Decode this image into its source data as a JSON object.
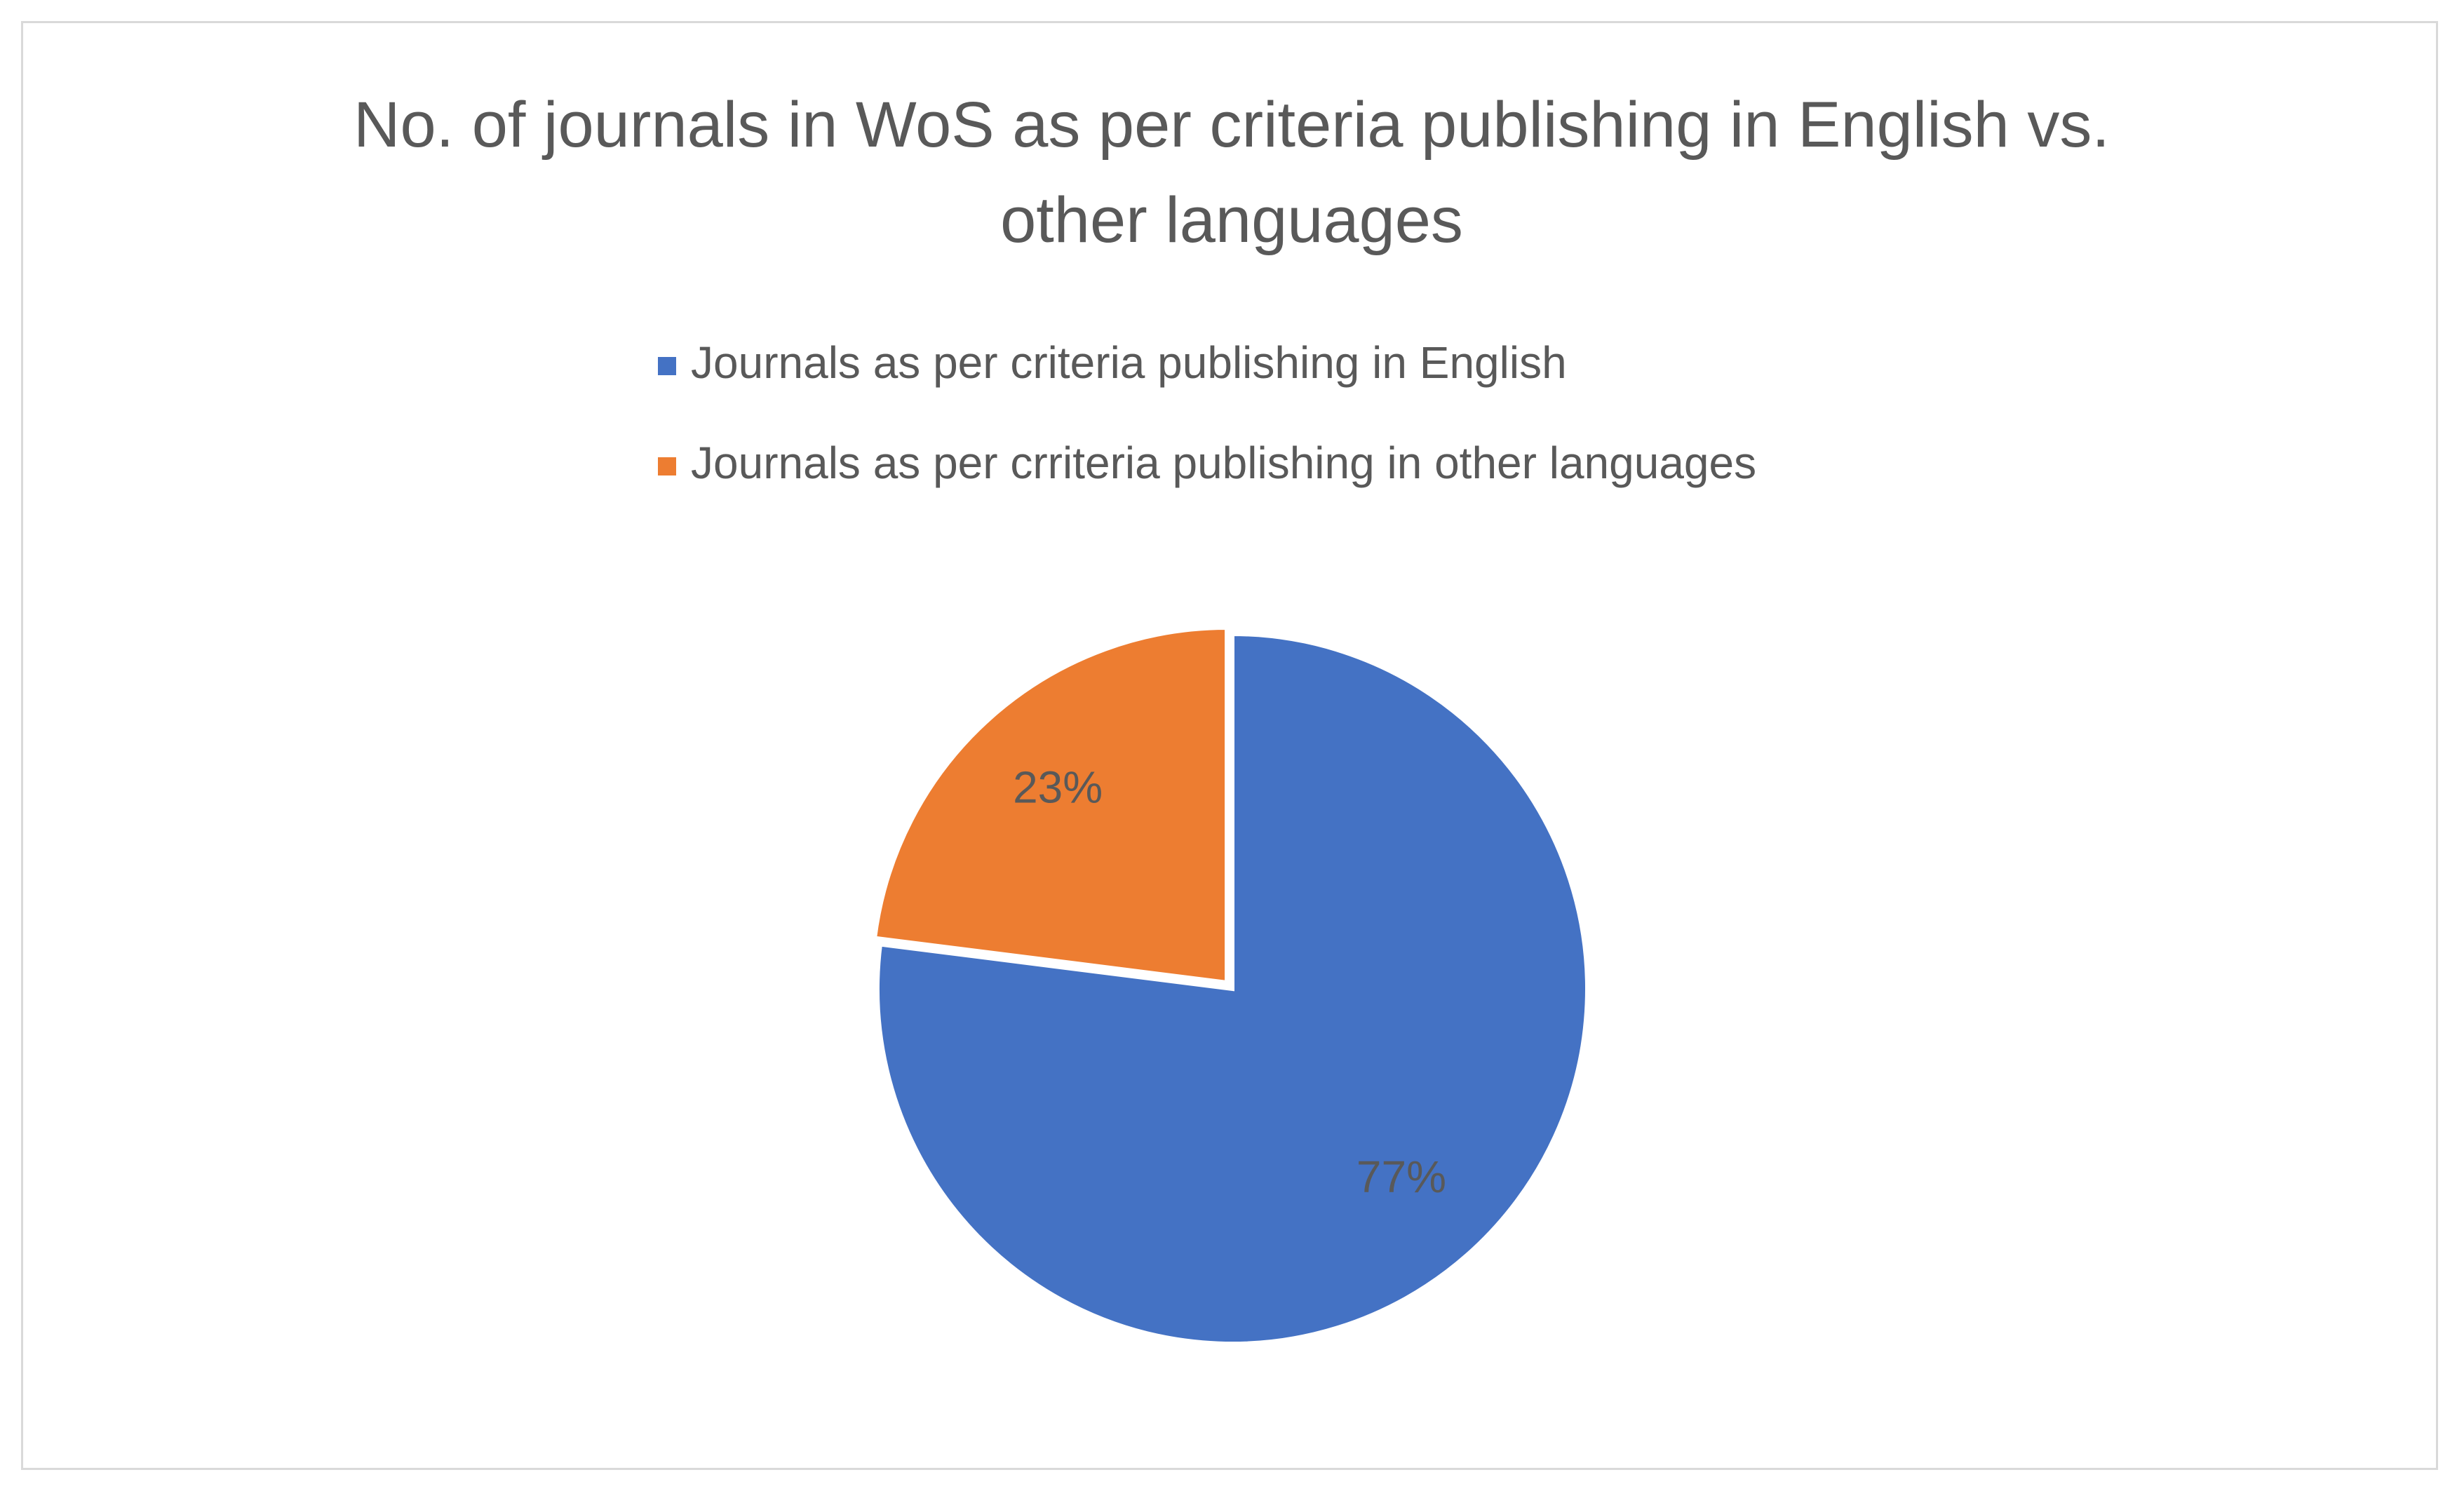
{
  "chart_data": {
    "type": "pie",
    "title": "No. of journals in WoS as per criteria publishing in English vs. other languages",
    "categories": [
      "Journals as per criteria publishing in English",
      "Journals as per crriteria publishing in other languages"
    ],
    "values": [
      77,
      23
    ],
    "value_labels": [
      "77%",
      "23%"
    ],
    "colors": [
      "#4472c4",
      "#ed7d31"
    ],
    "legend": "top"
  }
}
